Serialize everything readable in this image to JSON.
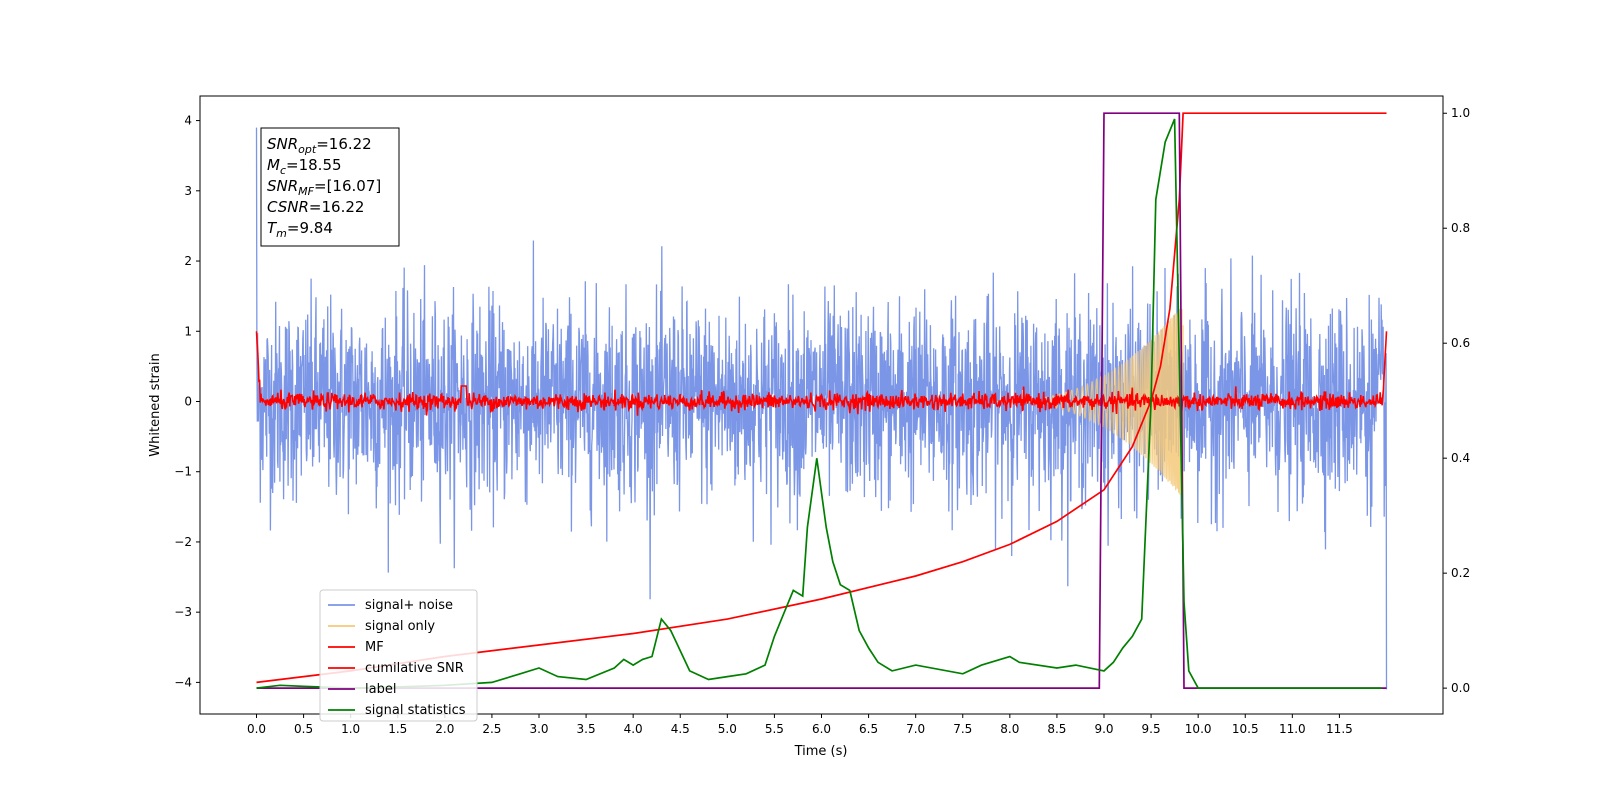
{
  "chart_data": {
    "type": "line",
    "xlabel": "Time (s)",
    "ylabel": "Whitened strain",
    "xlim": [
      -0.6,
      12.6
    ],
    "ylim": [
      -4.45,
      4.35
    ],
    "y2lim": [
      -0.045,
      1.03
    ],
    "x_ticks": [
      "0.0",
      "0.5",
      "1.0",
      "1.5",
      "2.0",
      "2.5",
      "3.0",
      "3.5",
      "4.0",
      "4.5",
      "5.0",
      "5.5",
      "6.0",
      "6.5",
      "7.0",
      "7.5",
      "8.0",
      "8.5",
      "9.0",
      "9.5",
      "10.0",
      "10.5",
      "11.0",
      "11.5"
    ],
    "y_ticks": [
      "4",
      "3",
      "2",
      "1",
      "0",
      "−1",
      "−2",
      "−3",
      "−4"
    ],
    "y2_ticks": [
      "1.0",
      "0.8",
      "0.6",
      "0.4",
      "0.2",
      "0.0"
    ],
    "annotation": {
      "lines": [
        {
          "base": "SNR",
          "sub": "opt",
          "value": "=16.22"
        },
        {
          "base": "M",
          "sub": "c",
          "value": "=18.55"
        },
        {
          "base": "SNR",
          "sub": "MF",
          "value": "=[16.07]"
        },
        {
          "base": "CSNR",
          "sub": "",
          "value": "=16.22"
        },
        {
          "base": "T",
          "sub": "m",
          "value": "=9.84"
        }
      ]
    },
    "legend": {
      "placement": "lower-left",
      "entries": [
        {
          "label": "signal+ noise",
          "color": "#7b96e6"
        },
        {
          "label": "signal only",
          "color": "#f5c97a"
        },
        {
          "label": "MF",
          "color": "#ff0000"
        },
        {
          "label": "cumilative SNR",
          "color": "#ff0000"
        },
        {
          "label": "label",
          "color": "#800080"
        },
        {
          "label": "signal statistics",
          "color": "#008000"
        }
      ]
    },
    "series": [
      {
        "name": "signal+ noise",
        "axis": "left",
        "color": "#7b96e6",
        "description": "whitened noise time series, approx. Gaussian, sigma ≈ 0.7, spanning 0–12 s",
        "x_range": [
          0.0,
          12.0
        ],
        "noise_std": 0.7
      },
      {
        "name": "signal only",
        "axis": "left",
        "color": "#f5c97a",
        "description": "chirp signal growing in amplitude until merger",
        "x_range": [
          7.8,
          9.84
        ],
        "peak_amplitude": 1.4,
        "merger_time": 9.84
      },
      {
        "name": "MF",
        "axis": "left",
        "color": "#ff0000",
        "description": "matched filter output, noisy around 0 with edge spikes to ~1.0",
        "x_range": [
          0.0,
          12.0
        ],
        "edge_value": 1.0,
        "noise_std": 0.06
      },
      {
        "name": "cumilative SNR",
        "axis": "right",
        "color": "#ff0000",
        "x": [
          0.0,
          1.0,
          2.0,
          3.0,
          4.0,
          5.0,
          6.0,
          7.0,
          7.5,
          8.0,
          8.5,
          9.0,
          9.3,
          9.5,
          9.6,
          9.7,
          9.8,
          9.84,
          12.0
        ],
        "y": [
          0.01,
          0.03,
          0.055,
          0.075,
          0.095,
          0.12,
          0.155,
          0.195,
          0.22,
          0.25,
          0.29,
          0.345,
          0.42,
          0.5,
          0.56,
          0.66,
          0.85,
          1.0,
          1.0
        ]
      },
      {
        "name": "label",
        "axis": "right",
        "color": "#800080",
        "x": [
          0.0,
          8.95,
          9.0,
          9.8,
          9.85,
          12.0
        ],
        "y": [
          0.0,
          0.0,
          1.0,
          1.0,
          0.0,
          0.0
        ]
      },
      {
        "name": "signal statistics",
        "axis": "right",
        "color": "#008000",
        "x": [
          0.0,
          0.25,
          0.5,
          1.0,
          1.5,
          2.0,
          2.5,
          2.8,
          3.0,
          3.2,
          3.5,
          3.8,
          3.9,
          4.0,
          4.1,
          4.2,
          4.3,
          4.4,
          4.6,
          4.8,
          5.0,
          5.2,
          5.4,
          5.5,
          5.6,
          5.7,
          5.8,
          5.85,
          5.95,
          6.0,
          6.05,
          6.12,
          6.2,
          6.3,
          6.4,
          6.5,
          6.6,
          6.75,
          7.0,
          7.5,
          7.7,
          8.0,
          8.1,
          8.5,
          8.7,
          9.0,
          9.1,
          9.2,
          9.3,
          9.4,
          9.5,
          9.55,
          9.65,
          9.75,
          9.85,
          9.9,
          10.0,
          11.0,
          11.95
        ],
        "y": [
          0.0,
          0.005,
          0.003,
          0.0,
          0.002,
          0.005,
          0.01,
          0.025,
          0.035,
          0.02,
          0.015,
          0.035,
          0.05,
          0.04,
          0.05,
          0.055,
          0.12,
          0.1,
          0.03,
          0.015,
          0.02,
          0.025,
          0.04,
          0.09,
          0.13,
          0.17,
          0.16,
          0.28,
          0.4,
          0.34,
          0.28,
          0.22,
          0.18,
          0.17,
          0.1,
          0.07,
          0.045,
          0.03,
          0.04,
          0.025,
          0.04,
          0.055,
          0.045,
          0.035,
          0.04,
          0.03,
          0.045,
          0.07,
          0.09,
          0.12,
          0.5,
          0.85,
          0.95,
          0.99,
          0.15,
          0.03,
          0.0,
          0.0,
          0.0
        ]
      }
    ]
  }
}
